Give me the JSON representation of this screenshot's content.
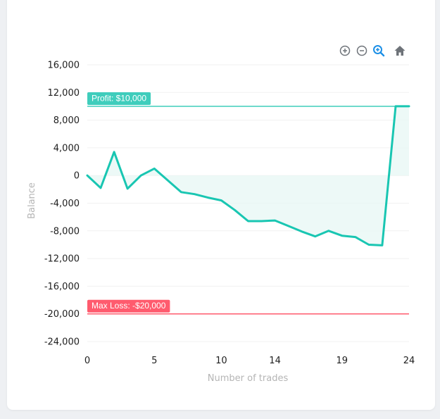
{
  "toolbar": {
    "zoom_in": "zoom-in-icon",
    "zoom_out": "zoom-out-icon",
    "zoom_select": "magnifier-icon",
    "reset": "home-icon"
  },
  "colors": {
    "line": "#19c6b2",
    "area": "#e9f7f5",
    "profit": "#3fcdbc",
    "loss": "#ff5b6e",
    "active_tool": "#1c8fe6",
    "tool": "#6e7379"
  },
  "chart_data": {
    "type": "line",
    "xlabel": "Number of trades",
    "ylabel": "Balance",
    "xlim": [
      0,
      24
    ],
    "ylim": [
      -24000,
      16000
    ],
    "x_ticks": [
      "0",
      "5",
      "10",
      "14",
      "19",
      "24"
    ],
    "x_tick_values": [
      0,
      5,
      10,
      14,
      19,
      24
    ],
    "y_ticks": [
      "16,000",
      "12,000",
      "8,000",
      "4,000",
      "0",
      "-4,000",
      "-8,000",
      "-12,000",
      "-16,000",
      "-20,000",
      "-24,000"
    ],
    "y_tick_values": [
      16000,
      12000,
      8000,
      4000,
      0,
      -4000,
      -8000,
      -12000,
      -16000,
      -20000,
      -24000
    ],
    "series": [
      {
        "x": [
          0,
          1,
          2,
          3,
          4,
          5,
          6,
          7,
          8,
          9,
          10,
          11,
          12,
          13,
          14,
          15,
          16,
          17,
          18,
          19,
          20,
          21,
          22,
          23,
          24
        ],
        "y": [
          0,
          -1800,
          3400,
          -1900,
          0,
          1000,
          -700,
          -2400,
          -2700,
          -3200,
          -3600,
          -5000,
          -6600,
          -6600,
          -6500,
          -7300,
          -8100,
          -8800,
          -8000,
          -8700,
          -8900,
          -10000,
          -10100,
          10000,
          10000
        ]
      }
    ],
    "annotations": [
      {
        "label": "Profit: $10,000",
        "y": 10000,
        "color": "profit"
      },
      {
        "label": "Max Loss: -$20,000",
        "y": -20000,
        "color": "loss"
      }
    ],
    "grid": true,
    "legend": "none"
  }
}
